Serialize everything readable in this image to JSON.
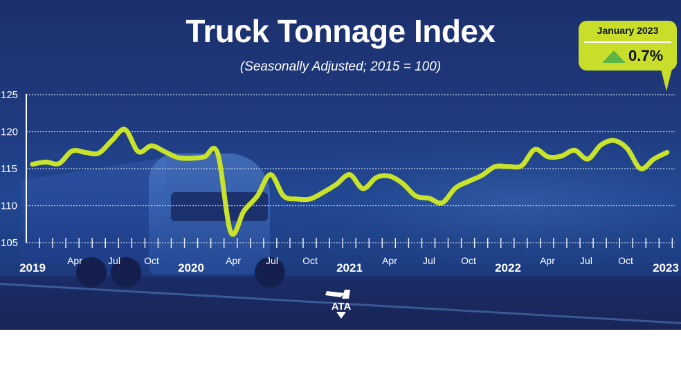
{
  "header": {
    "title": "Truck Tonnage Index",
    "subtitle": "(Seasonally Adjusted; 2015 = 100)"
  },
  "callout": {
    "period": "January 2023",
    "change": "0.7%",
    "direction": "up",
    "arrow_icon": "triangle-up-icon",
    "arrow_color": "#5db546",
    "background_color": "#c8de2a"
  },
  "logo": {
    "text": "ATA"
  },
  "colors": {
    "line": "#c8e32a",
    "background": "#1f3a7e",
    "grid": "#c9d3ea",
    "text": "#ffffff"
  },
  "axis": {
    "y_ticks": [
      "125",
      "120",
      "115",
      "110",
      "105"
    ],
    "x_year_labels": [
      "2019",
      "2020",
      "2021",
      "2022",
      "2023"
    ],
    "x_month_labels": [
      "Apr",
      "Jul",
      "Oct",
      "Apr",
      "Jul",
      "Oct",
      "Apr",
      "Jul",
      "Oct",
      "Apr",
      "Jul",
      "Oct"
    ]
  },
  "chart_data": {
    "type": "line",
    "title": "Truck Tonnage Index",
    "subtitle": "(Seasonally Adjusted; 2015 = 100)",
    "xlabel": "",
    "ylabel": "",
    "ylim": [
      105,
      125
    ],
    "y_ticks": [
      105,
      110,
      115,
      120,
      125
    ],
    "grid": "horizontal dotted",
    "legend": "none",
    "annotation": "January 2023 ▲ 0.7%",
    "x": [
      "Jan 2019",
      "Feb 2019",
      "Mar 2019",
      "Apr 2019",
      "May 2019",
      "Jun 2019",
      "Jul 2019",
      "Aug 2019",
      "Sep 2019",
      "Oct 2019",
      "Nov 2019",
      "Dec 2019",
      "Jan 2020",
      "Feb 2020",
      "Mar 2020",
      "Apr 2020",
      "May 2020",
      "Jun 2020",
      "Jul 2020",
      "Aug 2020",
      "Sep 2020",
      "Oct 2020",
      "Nov 2020",
      "Dec 2020",
      "Jan 2021",
      "Feb 2021",
      "Mar 2021",
      "Apr 2021",
      "May 2021",
      "Jun 2021",
      "Jul 2021",
      "Aug 2021",
      "Sep 2021",
      "Oct 2021",
      "Nov 2021",
      "Dec 2021",
      "Jan 2022",
      "Feb 2022",
      "Mar 2022",
      "Apr 2022",
      "May 2022",
      "Jun 2022",
      "Jul 2022",
      "Aug 2022",
      "Sep 2022",
      "Oct 2022",
      "Nov 2022",
      "Dec 2022",
      "Jan 2023"
    ],
    "series": [
      {
        "name": "Truck Tonnage Index",
        "values": [
          115.6,
          115.9,
          115.7,
          117.4,
          117.2,
          117.1,
          118.8,
          120.3,
          117.3,
          118.1,
          117.3,
          116.5,
          116.4,
          116.6,
          117.1,
          106.4,
          109.3,
          111.3,
          114.2,
          111.3,
          110.9,
          110.9,
          111.8,
          112.9,
          114.2,
          112.3,
          113.8,
          114.0,
          113.0,
          111.3,
          111.0,
          110.4,
          112.4,
          113.3,
          114.1,
          115.3,
          115.3,
          115.4,
          117.6,
          116.6,
          116.7,
          117.5,
          116.3,
          118.2,
          118.8,
          117.7,
          115.0,
          116.3,
          117.2
        ]
      }
    ]
  }
}
